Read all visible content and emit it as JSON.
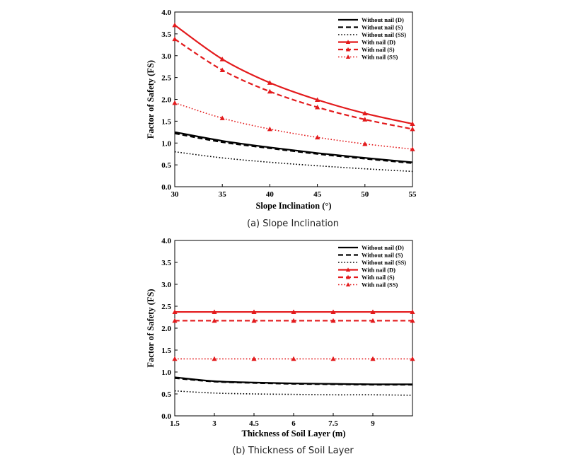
{
  "chart_data": [
    {
      "type": "line",
      "caption": "(a) Slope Inclination",
      "xlabel": "Slope Inclination (°)",
      "ylabel": "Factor of Safety (FS)",
      "xlim": [
        30,
        55
      ],
      "ylim": [
        0,
        4
      ],
      "x_ticks": [
        "30",
        "35",
        "40",
        "45",
        "50",
        "55"
      ],
      "y_ticks": [
        "0.0",
        "0.5",
        "1.0",
        "1.5",
        "2.0",
        "2.5",
        "3.0",
        "3.5",
        "4.0"
      ],
      "legend_position": "top-right",
      "x": [
        30,
        35,
        40,
        45,
        50,
        55
      ],
      "series": [
        {
          "name": "Without nail (D)",
          "color": "#000000",
          "dash": "solid",
          "marker": "none",
          "values": [
            1.25,
            1.05,
            0.9,
            0.77,
            0.66,
            0.56
          ]
        },
        {
          "name": "Without nail (S)",
          "color": "#000000",
          "dash": "dashed",
          "marker": "none",
          "values": [
            1.22,
            1.02,
            0.88,
            0.75,
            0.64,
            0.54
          ]
        },
        {
          "name": "Without nail (SS)",
          "color": "#000000",
          "dash": "dotted",
          "marker": "none",
          "values": [
            0.8,
            0.66,
            0.56,
            0.48,
            0.41,
            0.35
          ]
        },
        {
          "name": "With nail (D)",
          "color": "#e31a1c",
          "dash": "solid",
          "marker": "triangle",
          "values": [
            3.7,
            2.92,
            2.38,
            1.99,
            1.68,
            1.44
          ]
        },
        {
          "name": "With nail (S)",
          "color": "#e31a1c",
          "dash": "dashed",
          "marker": "triangle",
          "values": [
            3.38,
            2.67,
            2.18,
            1.82,
            1.54,
            1.32
          ]
        },
        {
          "name": "With nail (SS)",
          "color": "#e31a1c",
          "dash": "dotted",
          "marker": "triangle",
          "values": [
            1.92,
            1.57,
            1.32,
            1.13,
            0.98,
            0.86
          ]
        }
      ]
    },
    {
      "type": "line",
      "caption": "(b) Thickness of Soil Layer",
      "xlabel": "Thickness of Soil Layer (m)",
      "ylabel": "Factor of Safety (FS)",
      "xlim": [
        1.5,
        10.5
      ],
      "ylim": [
        0,
        4
      ],
      "x_ticks": [
        "1.5",
        "3",
        "4.5",
        "6",
        "7.5",
        "9"
      ],
      "y_ticks": [
        "0.0",
        "0.5",
        "1.0",
        "1.5",
        "2.0",
        "2.5",
        "3.0",
        "3.5",
        "4.0"
      ],
      "legend_position": "top-right",
      "x": [
        1.5,
        3,
        4.5,
        6,
        7.5,
        9,
        10.5
      ],
      "series": [
        {
          "name": "Without nail (D)",
          "color": "#000000",
          "dash": "solid",
          "marker": "none",
          "values": [
            0.88,
            0.79,
            0.76,
            0.74,
            0.73,
            0.72,
            0.72
          ]
        },
        {
          "name": "Without nail (S)",
          "color": "#000000",
          "dash": "dashed",
          "marker": "none",
          "values": [
            0.86,
            0.78,
            0.75,
            0.73,
            0.72,
            0.71,
            0.71
          ]
        },
        {
          "name": "Without nail (SS)",
          "color": "#000000",
          "dash": "dotted",
          "marker": "none",
          "values": [
            0.57,
            0.52,
            0.5,
            0.49,
            0.48,
            0.48,
            0.47
          ]
        },
        {
          "name": "With nail (D)",
          "color": "#e31a1c",
          "dash": "solid",
          "marker": "triangle",
          "values": [
            2.37,
            2.37,
            2.37,
            2.37,
            2.37,
            2.37,
            2.37
          ]
        },
        {
          "name": "With nail (S)",
          "color": "#e31a1c",
          "dash": "dashed",
          "marker": "triangle",
          "values": [
            2.17,
            2.17,
            2.17,
            2.17,
            2.17,
            2.17,
            2.17
          ]
        },
        {
          "name": "With nail (SS)",
          "color": "#e31a1c",
          "dash": "dotted",
          "marker": "triangle",
          "values": [
            1.3,
            1.3,
            1.3,
            1.3,
            1.3,
            1.3,
            1.3
          ]
        }
      ]
    }
  ]
}
